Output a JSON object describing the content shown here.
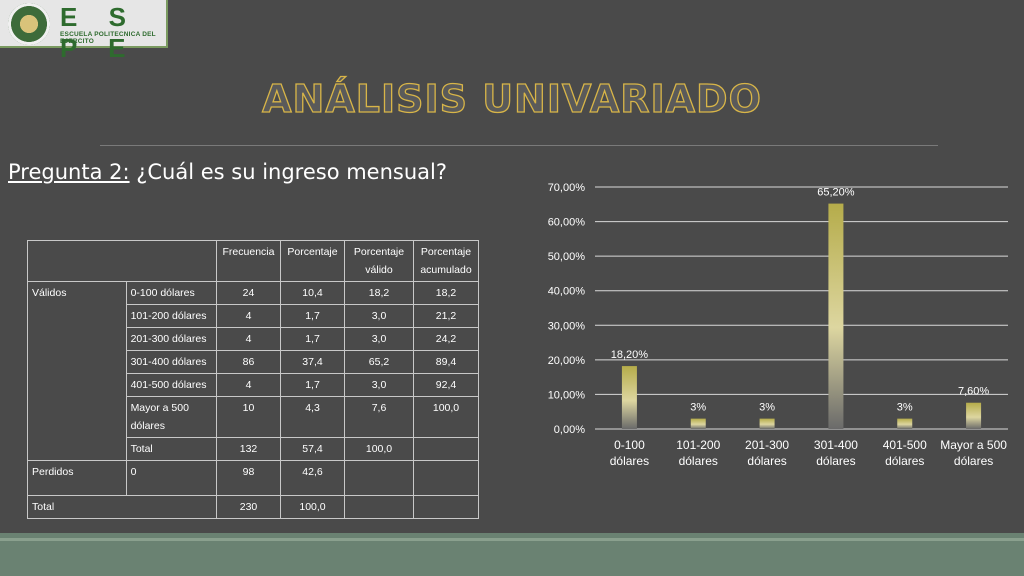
{
  "logo": {
    "name": "E S P E",
    "subtitle": "ESCUELA POLITECNICA DEL EJERCITO"
  },
  "title": "ANÁLISIS UNIVARIADO",
  "question": {
    "label": "Pregunta 2:",
    "text": " ¿Cuál es su ingreso mensual?"
  },
  "table": {
    "headers": [
      "Frecuencia",
      "Porcentaje",
      "Porcentaje válido",
      "Porcentaje acumulado"
    ],
    "group_validos": "Válidos",
    "rows_validos": [
      [
        "0-100 dólares",
        "24",
        "10,4",
        "18,2",
        "18,2"
      ],
      [
        "101-200 dólares",
        "4",
        "1,7",
        "3,0",
        "21,2"
      ],
      [
        "201-300 dólares",
        "4",
        "1,7",
        "3,0",
        "24,2"
      ],
      [
        "301-400 dólares",
        "86",
        "37,4",
        "65,2",
        "89,4"
      ],
      [
        "401-500 dólares",
        "4",
        "1,7",
        "3,0",
        "92,4"
      ],
      [
        "Mayor a 500 dólares",
        "10",
        "4,3",
        "7,6",
        "100,0"
      ],
      [
        "Total",
        "132",
        "57,4",
        "100,0",
        ""
      ]
    ],
    "group_perdidos": "Perdidos",
    "row_perdidos": [
      "0",
      "98",
      "42,6",
      "",
      ""
    ],
    "group_total": "Total",
    "row_total": [
      "230",
      "100,0",
      "",
      ""
    ]
  },
  "chart_data": {
    "type": "bar",
    "categories": [
      [
        "0-100",
        "dólares"
      ],
      [
        "101-200",
        "dólares"
      ],
      [
        "201-300",
        "dólares"
      ],
      [
        "301-400",
        "dólares"
      ],
      [
        "401-500",
        "dólares"
      ],
      [
        "Mayor a 500",
        "dólares"
      ]
    ],
    "values": [
      18.2,
      3,
      3,
      65.2,
      3,
      7.6
    ],
    "data_labels": [
      "18,20%",
      "3%",
      "3%",
      "65,20%",
      "3%",
      "7,60%"
    ],
    "ylim": [
      0,
      70
    ],
    "yticks": [
      "0,00%",
      "10,00%",
      "20,00%",
      "30,00%",
      "40,00%",
      "50,00%",
      "60,00%",
      "70,00%"
    ],
    "grid": true,
    "bar_color": "#b5ac4a"
  }
}
